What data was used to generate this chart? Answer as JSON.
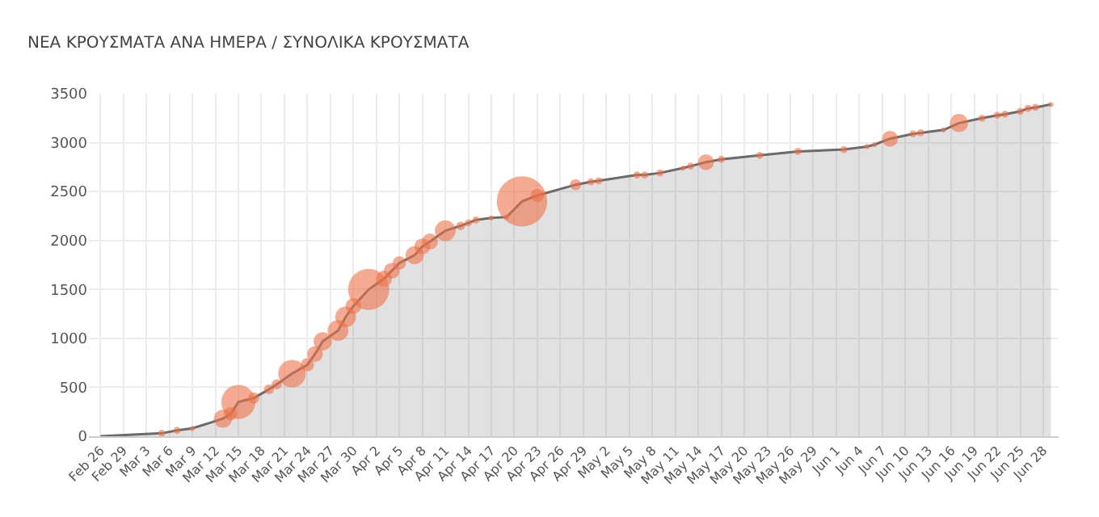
{
  "chart_data": {
    "type": "bubble",
    "title": "ΝΕΑ ΚΡΟΥΣΜΑΤΑ ΑΝΑ ΗΜΕΡΑ / ΣΥΝΟΛΙΚΑ ΚΡΟΥΣΜΑΤΑ",
    "x": [
      "--02-26",
      "--03-05",
      "--03-07",
      "--03-09",
      "--03-13",
      "--03-14",
      "--03-15",
      "--03-17",
      "--03-19",
      "--03-20",
      "--03-22",
      "--03-24",
      "--03-25",
      "--03-26",
      "--03-28",
      "--03-29",
      "--03-30",
      "--04-01",
      "--04-03",
      "--04-04",
      "--04-05",
      "--04-07",
      "--04-08",
      "--04-09",
      "--04-11",
      "--04-13",
      "--04-14",
      "--04-15",
      "--04-17",
      "--04-19",
      "--04-21",
      "--04-23",
      "--04-28",
      "--04-30",
      "--05-01",
      "--05-06",
      "--05-07",
      "--05-09",
      "--05-12",
      "--05-13",
      "--05-15",
      "--05-17",
      "--05-22",
      "--05-27",
      "--06-02",
      "--06-05",
      "--06-06",
      "--06-08",
      "--06-11",
      "--06-12",
      "--06-15",
      "--06-17",
      "--06-20",
      "--06-22",
      "--06-23",
      "--06-25",
      "--06-26",
      "--06-27",
      "--06-29"
    ],
    "series": [
      {
        "type": "area",
        "color": "#6b6b6b",
        "values": [
          0,
          30,
          60,
          80,
          180,
          230,
          350,
          390,
          480,
          530,
          640,
          730,
          840,
          970,
          1080,
          1220,
          1330,
          1500,
          1610,
          1690,
          1770,
          1850,
          1940,
          1990,
          2100,
          2150,
          2180,
          2210,
          2230,
          2240,
          2400,
          2460,
          2570,
          2600,
          2610,
          2670,
          2670,
          2690,
          2740,
          2760,
          2800,
          2830,
          2870,
          2910,
          2930,
          2960,
          2980,
          3040,
          3090,
          3100,
          3130,
          3200,
          3250,
          3280,
          3290,
          3320,
          3350,
          3360,
          3390
        ]
      },
      {
        "color": "#ef7047",
        "x": [
          "--03-05",
          "--03-07",
          "--03-09",
          "--03-13",
          "--03-14",
          "--03-15",
          "--03-17",
          "--03-19",
          "--03-20",
          "--03-22",
          "--03-24",
          "--03-25",
          "--03-26",
          "--03-28",
          "--03-29",
          "--03-30",
          "--04-01",
          "--04-03",
          "--04-04",
          "--04-05",
          "--04-07",
          "--04-08",
          "--04-09",
          "--04-11",
          "--04-13",
          "--04-14",
          "--04-15",
          "--04-17",
          "--04-19",
          "--04-21",
          "--04-23",
          "--04-28",
          "--04-30",
          "--05-01",
          "--05-06",
          "--05-07",
          "--05-09",
          "--05-12",
          "--05-13",
          "--05-15",
          "--05-17",
          "--05-22",
          "--05-27",
          "--06-02",
          "--06-05",
          "--06-06",
          "--06-08",
          "--06-11",
          "--06-12",
          "--06-15",
          "--06-17",
          "--06-20",
          "--06-22",
          "--06-23",
          "--06-25",
          "--06-26",
          "--06-27",
          "--06-29"
        ],
        "values": [
          30,
          60,
          80,
          180,
          230,
          350,
          390,
          480,
          530,
          640,
          730,
          840,
          970,
          1080,
          1220,
          1330,
          1500,
          1610,
          1690,
          1770,
          1850,
          1940,
          1990,
          2100,
          2150,
          2180,
          2210,
          2230,
          2240,
          2400,
          2460,
          2570,
          2600,
          2610,
          2670,
          2670,
          2690,
          2740,
          2760,
          2800,
          2830,
          2870,
          2910,
          2930,
          2960,
          2980,
          3040,
          3090,
          3100,
          3130,
          3200,
          3250,
          3280,
          3290,
          3320,
          3350,
          3360,
          3390
        ],
        "sizes": [
          0.02,
          0.02,
          0.01,
          0.13,
          0.07,
          0.46,
          0.05,
          0.04,
          0.04,
          0.3,
          0.07,
          0.1,
          0.13,
          0.17,
          0.17,
          0.1,
          0.67,
          0.1,
          0.1,
          0.07,
          0.13,
          0.1,
          0.1,
          0.17,
          0.03,
          0.02,
          0.02,
          0.01,
          0.01,
          1,
          0.07,
          0.05,
          0.02,
          0.02,
          0.02,
          0.02,
          0.02,
          0.01,
          0.02,
          0.1,
          0.02,
          0.02,
          0.02,
          0.02,
          0.01,
          0.01,
          0.1,
          0.02,
          0.02,
          0.01,
          0.13,
          0.02,
          0.02,
          0.02,
          0.02,
          0.02,
          0.02,
          0.01
        ]
      }
    ],
    "xlim": [
      "--02-24T12:00",
      "--06-30"
    ],
    "xticks": [
      {
        "value": "--02-26",
        "label": "Feb 26"
      },
      {
        "value": "--02-29",
        "label": "Feb 29"
      },
      {
        "value": "--03-03",
        "label": "Mar 3"
      },
      {
        "value": "--03-06",
        "label": "Mar 6"
      },
      {
        "value": "--03-09",
        "label": "Mar 9"
      },
      {
        "value": "--03-12",
        "label": "Mar 12"
      },
      {
        "value": "--03-15",
        "label": "Mar 15"
      },
      {
        "value": "--03-18",
        "label": "Mar 18"
      },
      {
        "value": "--03-21",
        "label": "Mar 21"
      },
      {
        "value": "--03-24",
        "label": "Mar 24"
      },
      {
        "value": "--03-27",
        "label": "Mar 27"
      },
      {
        "value": "--03-30",
        "label": "Mar 30"
      },
      {
        "value": "--04-02",
        "label": "Apr 2"
      },
      {
        "value": "--04-05",
        "label": "Apr 5"
      },
      {
        "value": "--04-08",
        "label": "Apr 8"
      },
      {
        "value": "--04-11",
        "label": "Apr 11"
      },
      {
        "value": "--04-14",
        "label": "Apr 14"
      },
      {
        "value": "--04-17",
        "label": "Apr 17"
      },
      {
        "value": "--04-20",
        "label": "Apr 20"
      },
      {
        "value": "--04-23",
        "label": "Apr 23"
      },
      {
        "value": "--04-26",
        "label": "Apr 26"
      },
      {
        "value": "--04-29",
        "label": "Apr 29"
      },
      {
        "value": "--05-02",
        "label": "May 2"
      },
      {
        "value": "--05-05",
        "label": "May 5"
      },
      {
        "value": "--05-08",
        "label": "May 8"
      },
      {
        "value": "--05-11",
        "label": "May 11"
      },
      {
        "value": "--05-14",
        "label": "May 14"
      },
      {
        "value": "--05-17",
        "label": "May 17"
      },
      {
        "value": "--05-20",
        "label": "May 20"
      },
      {
        "value": "--05-23",
        "label": "May 23"
      },
      {
        "value": "--05-26",
        "label": "May 26"
      },
      {
        "value": "--05-29",
        "label": "May 29"
      },
      {
        "value": "--06-01",
        "label": "Jun 1"
      },
      {
        "value": "--06-04",
        "label": "Jun 4"
      },
      {
        "value": "--06-07",
        "label": "Jun 7"
      },
      {
        "value": "--06-10",
        "label": "Jun 10"
      },
      {
        "value": "--06-13",
        "label": "Jun 13"
      },
      {
        "value": "--06-16",
        "label": "Jun 16"
      },
      {
        "value": "--06-19",
        "label": "Jun 19"
      },
      {
        "value": "--06-22",
        "label": "Jun 22"
      },
      {
        "value": "--06-25",
        "label": "Jun 25"
      },
      {
        "value": "--06-28",
        "label": "Jun 28"
      }
    ],
    "ylim": [
      0,
      3500
    ],
    "yticks": [
      0,
      500,
      1000,
      1500,
      2000,
      2500,
      3000,
      3500
    ],
    "grid": true
  }
}
